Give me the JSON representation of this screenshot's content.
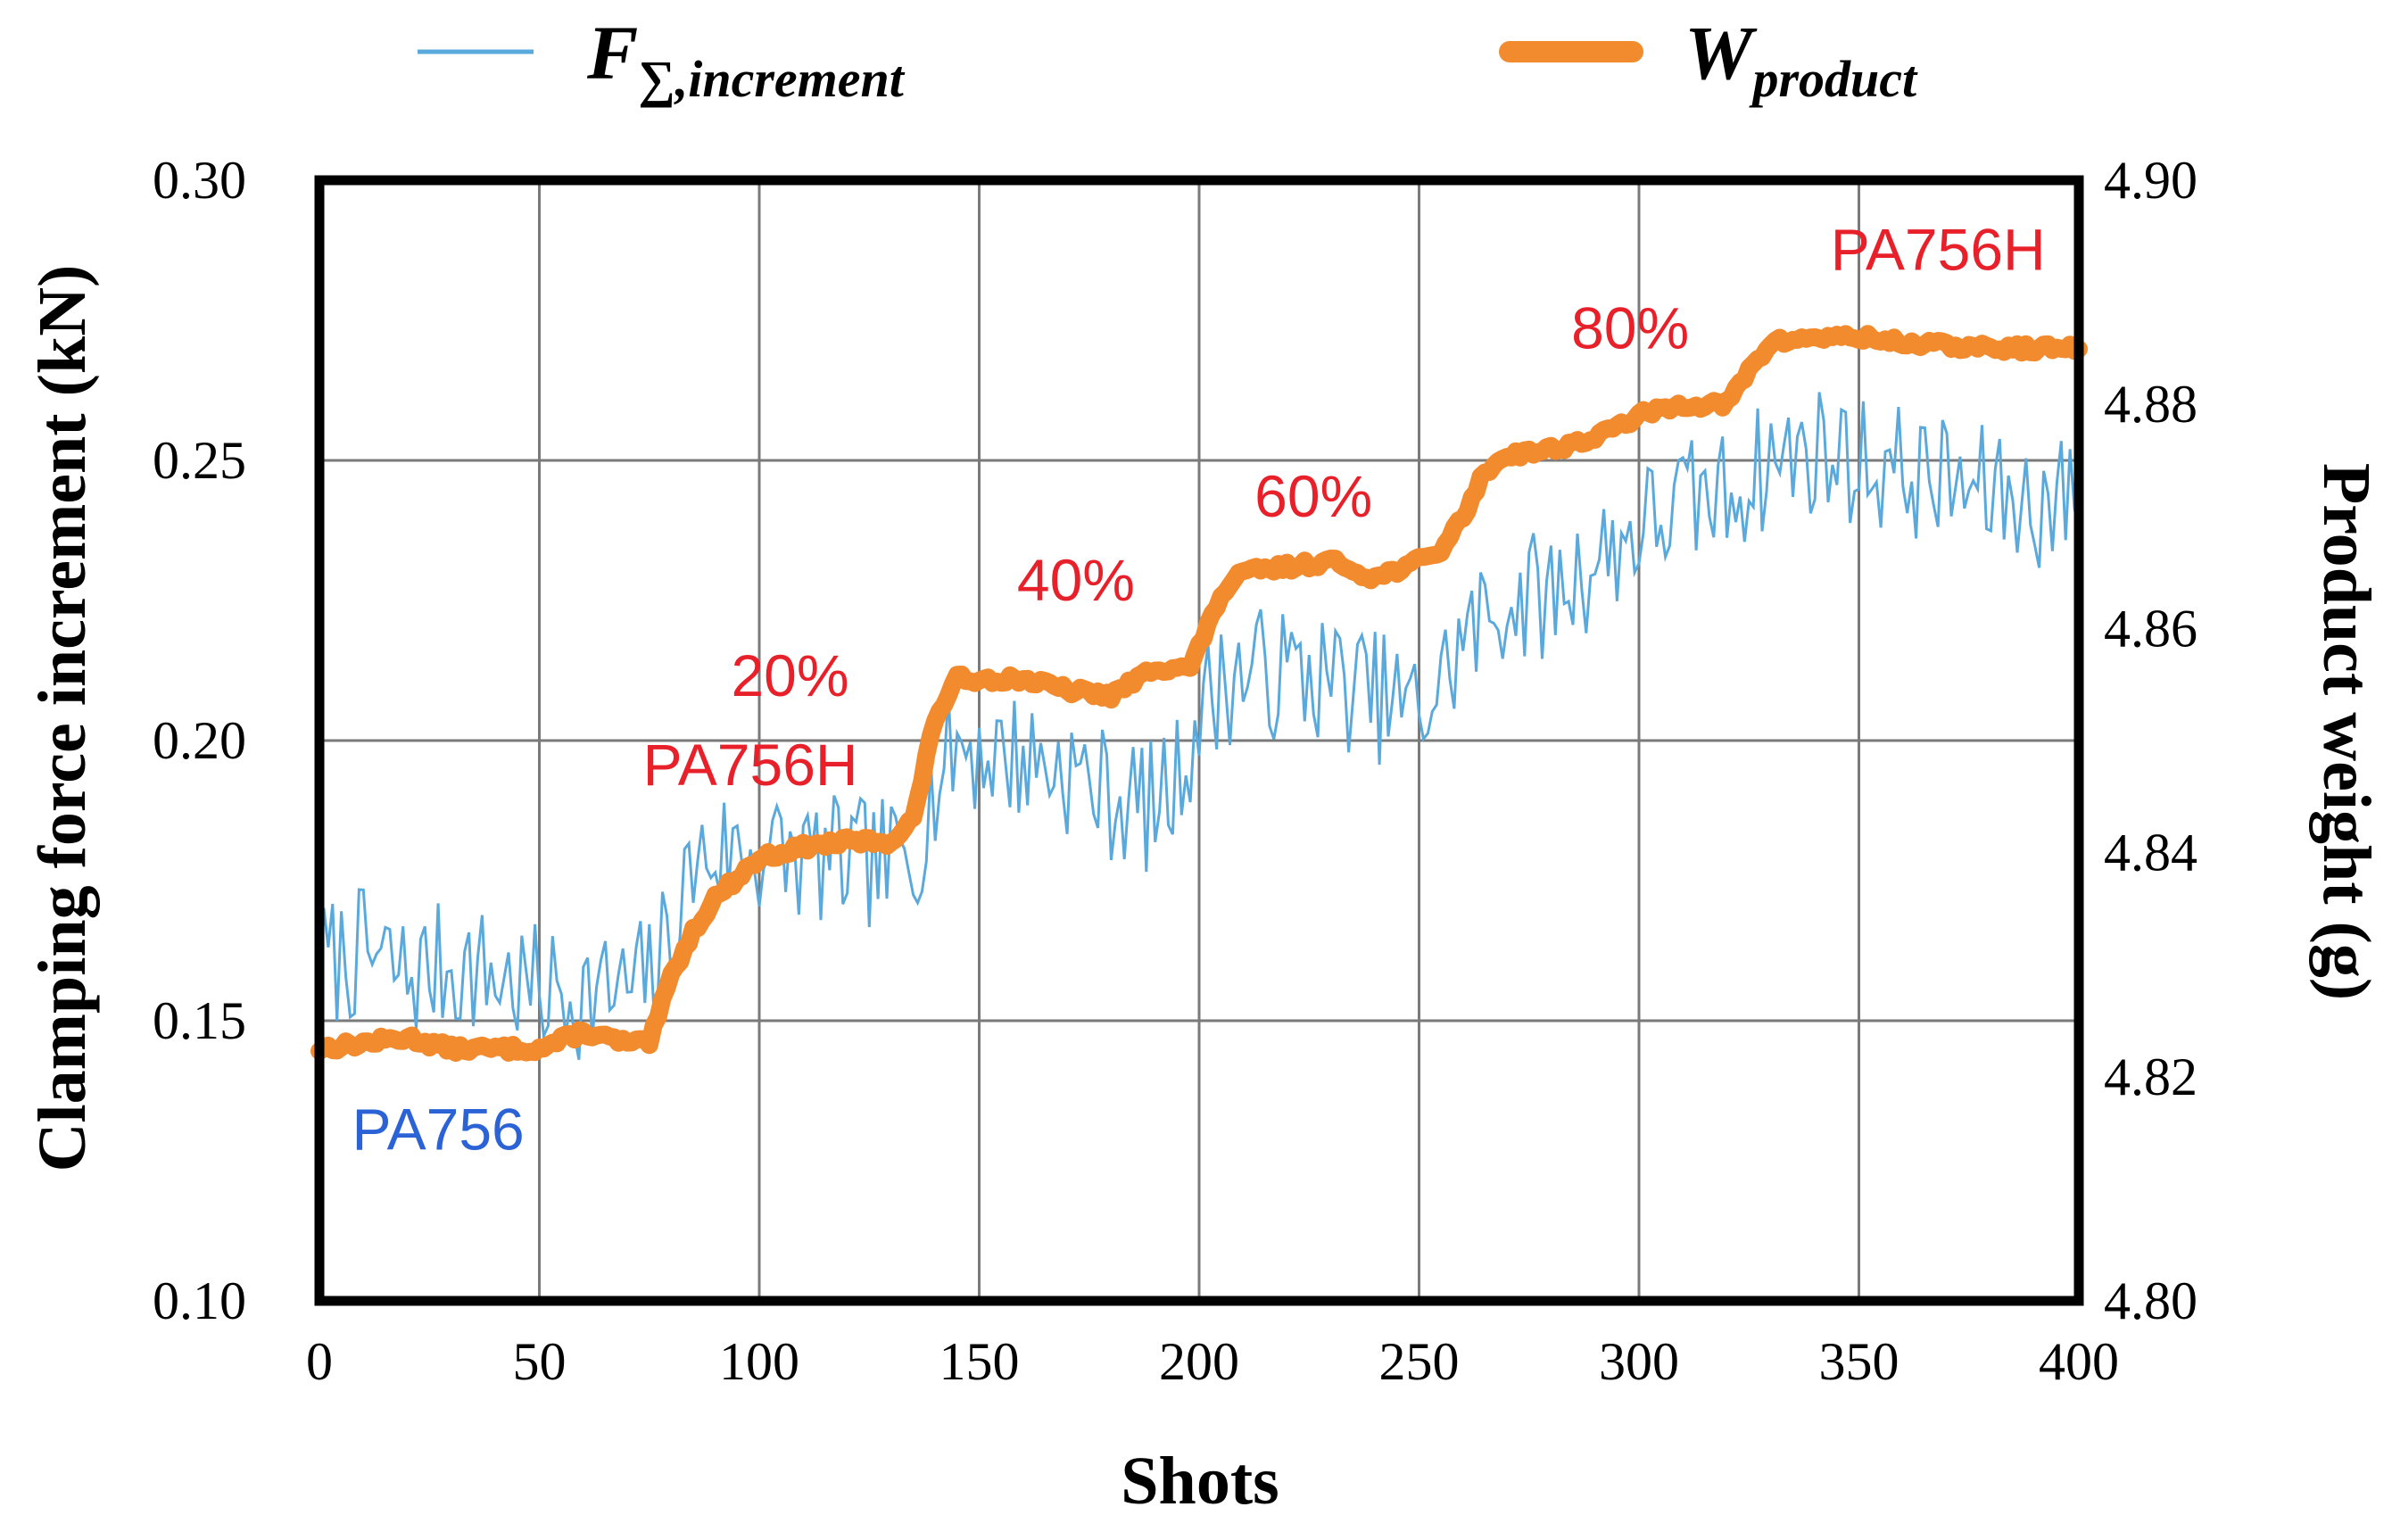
{
  "chart_data": {
    "type": "line",
    "title": "",
    "xlabel": "Shots",
    "ylabel_left": "Clamping force increment (kN)",
    "ylabel_right": "Product weight (g)",
    "xlim": [
      0,
      400
    ],
    "ylim_left": [
      0.1,
      0.3
    ],
    "ylim_right": [
      4.8,
      4.9
    ],
    "x_ticks": [
      "0",
      "50",
      "100",
      "150",
      "200",
      "250",
      "300",
      "350",
      "400"
    ],
    "y_left_ticks": [
      "0.10",
      "0.15",
      "0.20",
      "0.25",
      "0.30"
    ],
    "y_right_ticks": [
      "4.80",
      "4.82",
      "4.84",
      "4.86",
      "4.88",
      "4.90"
    ],
    "grid": true,
    "legend_position": "top",
    "legend": [
      {
        "symbol": "F",
        "subscript": "∑,increment",
        "color": "#5aa9dd"
      },
      {
        "symbol": "W",
        "subscript": "product",
        "color": "#f28a2e"
      }
    ],
    "series": [
      {
        "name": "F∑,increment",
        "axis": "left",
        "color": "#5aa9dd",
        "points": [
          [
            0,
            0.16
          ],
          [
            10,
            0.162
          ],
          [
            20,
            0.158
          ],
          [
            30,
            0.16
          ],
          [
            40,
            0.158
          ],
          [
            50,
            0.155
          ],
          [
            60,
            0.155
          ],
          [
            70,
            0.155
          ],
          [
            75,
            0.158
          ],
          [
            80,
            0.165
          ],
          [
            85,
            0.178
          ],
          [
            90,
            0.18
          ],
          [
            100,
            0.18
          ],
          [
            110,
            0.179
          ],
          [
            120,
            0.178
          ],
          [
            130,
            0.178
          ],
          [
            135,
            0.18
          ],
          [
            140,
            0.192
          ],
          [
            145,
            0.2
          ],
          [
            150,
            0.198
          ],
          [
            160,
            0.197
          ],
          [
            170,
            0.195
          ],
          [
            180,
            0.19
          ],
          [
            190,
            0.188
          ],
          [
            195,
            0.193
          ],
          [
            200,
            0.205
          ],
          [
            205,
            0.21
          ],
          [
            210,
            0.212
          ],
          [
            220,
            0.212
          ],
          [
            230,
            0.211
          ],
          [
            240,
            0.208
          ],
          [
            250,
            0.205
          ],
          [
            255,
            0.21
          ],
          [
            260,
            0.218
          ],
          [
            270,
            0.225
          ],
          [
            280,
            0.226
          ],
          [
            290,
            0.232
          ],
          [
            300,
            0.238
          ],
          [
            310,
            0.242
          ],
          [
            320,
            0.244
          ],
          [
            330,
            0.25
          ],
          [
            340,
            0.252
          ],
          [
            350,
            0.25
          ],
          [
            360,
            0.248
          ],
          [
            370,
            0.246
          ],
          [
            380,
            0.244
          ],
          [
            390,
            0.242
          ],
          [
            400,
            0.244
          ]
        ]
      },
      {
        "name": "Wproduct",
        "axis": "right",
        "color": "#f28a2e",
        "points": [
          [
            0,
            4.8225
          ],
          [
            20,
            4.8235
          ],
          [
            30,
            4.8225
          ],
          [
            50,
            4.8225
          ],
          [
            60,
            4.824
          ],
          [
            70,
            4.823
          ],
          [
            75,
            4.823
          ],
          [
            80,
            4.829
          ],
          [
            85,
            4.833
          ],
          [
            90,
            4.836
          ],
          [
            100,
            4.8395
          ],
          [
            110,
            4.8405
          ],
          [
            120,
            4.841
          ],
          [
            130,
            4.841
          ],
          [
            135,
            4.843
          ],
          [
            140,
            4.852
          ],
          [
            145,
            4.8555
          ],
          [
            160,
            4.8555
          ],
          [
            170,
            4.8545
          ],
          [
            180,
            4.854
          ],
          [
            190,
            4.8565
          ],
          [
            198,
            4.8565
          ],
          [
            205,
            4.863
          ],
          [
            210,
            4.865
          ],
          [
            220,
            4.8655
          ],
          [
            230,
            4.866
          ],
          [
            240,
            4.8645
          ],
          [
            250,
            4.866
          ],
          [
            255,
            4.867
          ],
          [
            260,
            4.87
          ],
          [
            265,
            4.874
          ],
          [
            270,
            4.8755
          ],
          [
            280,
            4.876
          ],
          [
            290,
            4.877
          ],
          [
            300,
            4.879
          ],
          [
            310,
            4.88
          ],
          [
            320,
            4.88
          ],
          [
            325,
            4.883
          ],
          [
            330,
            4.8855
          ],
          [
            340,
            4.886
          ],
          [
            350,
            4.886
          ],
          [
            360,
            4.8855
          ],
          [
            380,
            4.885
          ],
          [
            400,
            4.885
          ]
        ]
      }
    ],
    "annotations": [
      {
        "text": "PA756",
        "x": 27,
        "y": 0.127,
        "axis": "left",
        "color": "#2b63d6"
      },
      {
        "text": "20%",
        "x": 107,
        "y": 0.208,
        "axis": "left",
        "color": "#e8202a"
      },
      {
        "text": "PA756H",
        "x": 98,
        "y": 0.192,
        "axis": "left",
        "color": "#e8202a"
      },
      {
        "text": "40%",
        "x": 172,
        "y": 0.225,
        "axis": "left",
        "color": "#e8202a"
      },
      {
        "text": "60%",
        "x": 226,
        "y": 0.24,
        "axis": "left",
        "color": "#e8202a"
      },
      {
        "text": "80%",
        "x": 298,
        "y": 0.27,
        "axis": "left",
        "color": "#e8202a"
      },
      {
        "text": "PA756H",
        "x": 368,
        "y": 0.284,
        "axis": "left",
        "color": "#e8202a"
      }
    ]
  }
}
